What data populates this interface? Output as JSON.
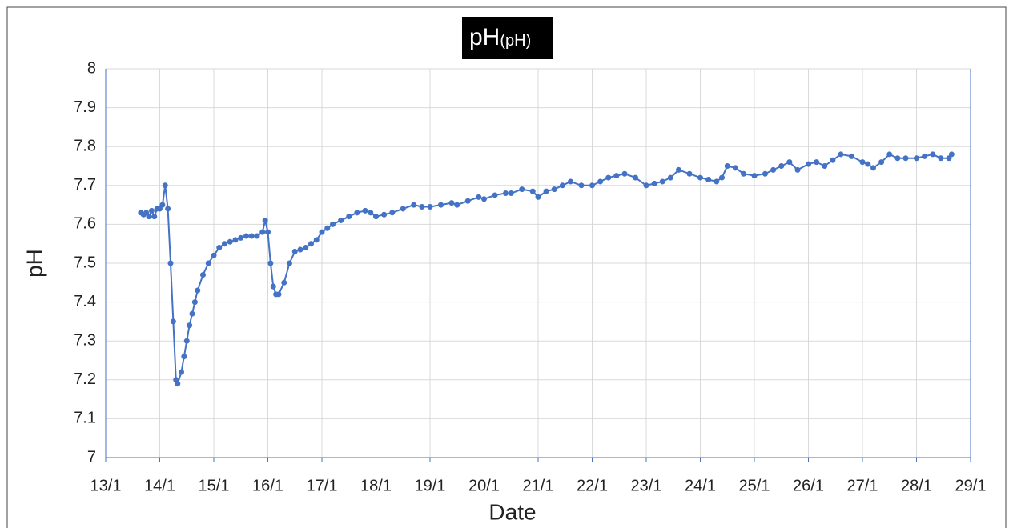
{
  "chart_data": {
    "type": "line",
    "title": "pH",
    "title_unit": "(pH)",
    "x_label": "Date",
    "y_label": "pH",
    "x": [
      13.65,
      13.7,
      13.75,
      13.8,
      13.85,
      13.9,
      13.95,
      14.0,
      14.05,
      14.1,
      14.15,
      14.2,
      14.25,
      14.3,
      14.33,
      14.4,
      14.45,
      14.5,
      14.55,
      14.6,
      14.65,
      14.7,
      14.8,
      14.9,
      15.0,
      15.1,
      15.2,
      15.3,
      15.4,
      15.5,
      15.6,
      15.7,
      15.8,
      15.9,
      15.95,
      16.0,
      16.05,
      16.1,
      16.15,
      16.2,
      16.3,
      16.4,
      16.5,
      16.6,
      16.7,
      16.8,
      16.9,
      17.0,
      17.1,
      17.2,
      17.35,
      17.5,
      17.65,
      17.8,
      17.9,
      18.0,
      18.15,
      18.3,
      18.5,
      18.7,
      18.85,
      19.0,
      19.2,
      19.4,
      19.5,
      19.7,
      19.9,
      20.0,
      20.2,
      20.4,
      20.5,
      20.7,
      20.9,
      21.0,
      21.15,
      21.3,
      21.45,
      21.6,
      21.8,
      22.0,
      22.15,
      22.3,
      22.45,
      22.6,
      22.8,
      23.0,
      23.15,
      23.3,
      23.45,
      23.6,
      23.8,
      24.0,
      24.15,
      24.3,
      24.4,
      24.5,
      24.65,
      24.8,
      25.0,
      25.2,
      25.35,
      25.5,
      25.65,
      25.8,
      26.0,
      26.15,
      26.3,
      26.45,
      26.6,
      26.8,
      27.0,
      27.1,
      27.2,
      27.35,
      27.5,
      27.65,
      27.8,
      28.0,
      28.15,
      28.3,
      28.45,
      28.6,
      28.65
    ],
    "values": [
      7.63,
      7.625,
      7.63,
      7.62,
      7.635,
      7.62,
      7.64,
      7.64,
      7.65,
      7.7,
      7.64,
      7.5,
      7.35,
      7.2,
      7.19,
      7.22,
      7.26,
      7.3,
      7.34,
      7.37,
      7.4,
      7.43,
      7.47,
      7.5,
      7.52,
      7.54,
      7.55,
      7.555,
      7.56,
      7.565,
      7.57,
      7.57,
      7.57,
      7.58,
      7.61,
      7.58,
      7.5,
      7.44,
      7.42,
      7.42,
      7.45,
      7.5,
      7.53,
      7.535,
      7.54,
      7.55,
      7.56,
      7.58,
      7.59,
      7.6,
      7.61,
      7.62,
      7.63,
      7.635,
      7.63,
      7.62,
      7.625,
      7.63,
      7.64,
      7.65,
      7.645,
      7.645,
      7.65,
      7.655,
      7.65,
      7.66,
      7.67,
      7.665,
      7.675,
      7.68,
      7.68,
      7.69,
      7.685,
      7.67,
      7.685,
      7.69,
      7.7,
      7.71,
      7.7,
      7.7,
      7.71,
      7.72,
      7.725,
      7.73,
      7.72,
      7.7,
      7.705,
      7.71,
      7.72,
      7.74,
      7.73,
      7.72,
      7.715,
      7.71,
      7.72,
      7.75,
      7.745,
      7.73,
      7.725,
      7.73,
      7.74,
      7.75,
      7.76,
      7.74,
      7.755,
      7.76,
      7.75,
      7.765,
      7.78,
      7.775,
      7.76,
      7.755,
      7.745,
      7.76,
      7.78,
      7.77,
      7.77,
      7.77,
      7.775,
      7.78,
      7.77,
      7.77,
      7.78
    ],
    "color": "#4472c4",
    "xlim": [
      13,
      29
    ],
    "xticks": [
      {
        "value": 13,
        "label": "13/1"
      },
      {
        "value": 14,
        "label": "14/1"
      },
      {
        "value": 15,
        "label": "15/1"
      },
      {
        "value": 16,
        "label": "16/1"
      },
      {
        "value": 17,
        "label": "17/1"
      },
      {
        "value": 18,
        "label": "18/1"
      },
      {
        "value": 19,
        "label": "19/1"
      },
      {
        "value": 20,
        "label": "20/1"
      },
      {
        "value": 21,
        "label": "21/1"
      },
      {
        "value": 22,
        "label": "22/1"
      },
      {
        "value": 23,
        "label": "23/1"
      },
      {
        "value": 24,
        "label": "24/1"
      },
      {
        "value": 25,
        "label": "25/1"
      },
      {
        "value": 26,
        "label": "26/1"
      },
      {
        "value": 27,
        "label": "27/1"
      },
      {
        "value": 28,
        "label": "28/1"
      },
      {
        "value": 29,
        "label": "29/1"
      }
    ],
    "ylim": [
      7,
      8
    ],
    "yticks": [
      7,
      7.1,
      7.2,
      7.3,
      7.4,
      7.5,
      7.6,
      7.7,
      7.8,
      7.9,
      8
    ],
    "grid": true
  }
}
